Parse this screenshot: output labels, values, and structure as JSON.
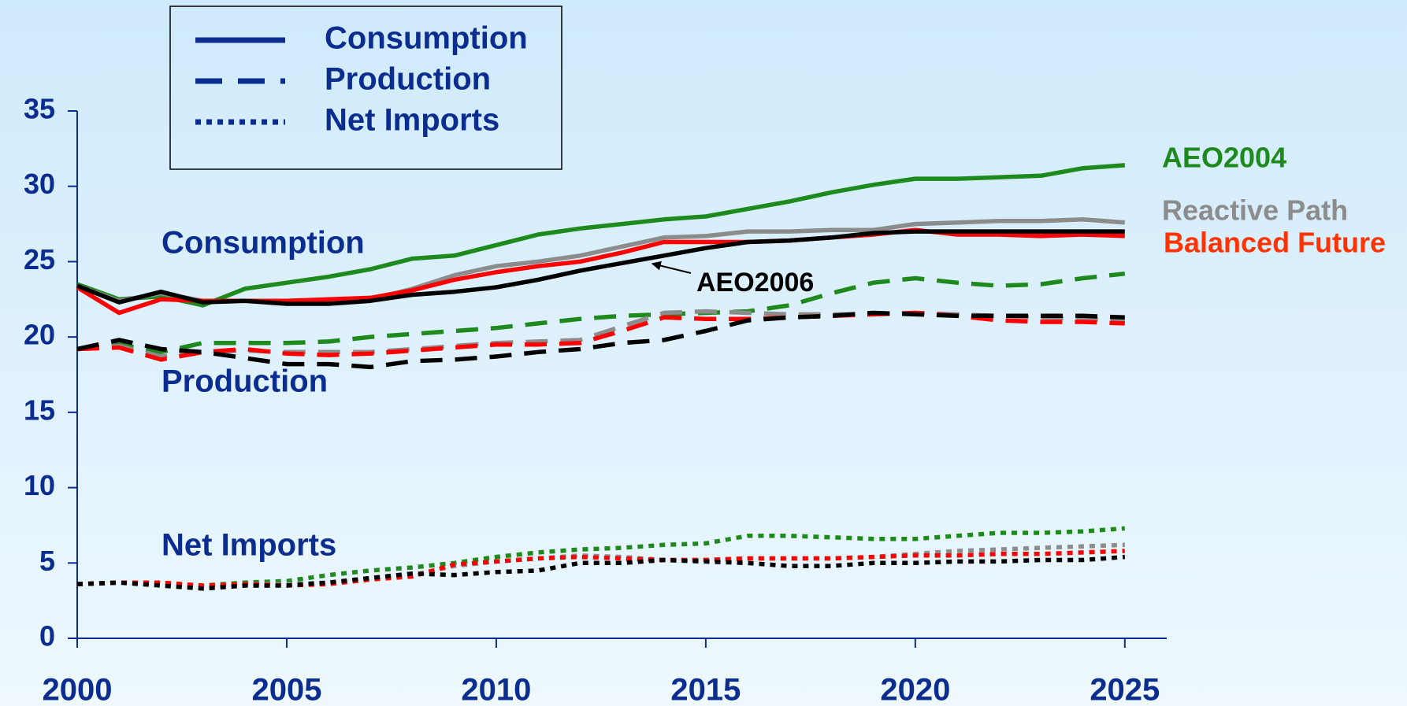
{
  "chart_data": {
    "type": "line",
    "x": [
      2000,
      2001,
      2002,
      2003,
      2004,
      2005,
      2006,
      2007,
      2008,
      2009,
      2010,
      2011,
      2012,
      2013,
      2014,
      2015,
      2016,
      2017,
      2018,
      2019,
      2020,
      2021,
      2022,
      2023,
      2024,
      2025
    ],
    "xlim": [
      2000,
      2026
    ],
    "xticks": [
      2000,
      2005,
      2010,
      2015,
      2020,
      2025
    ],
    "ylim": [
      0,
      35
    ],
    "yticks": [
      0,
      5,
      10,
      15,
      20,
      25,
      30,
      35
    ],
    "legend": [
      {
        "name": "Consumption",
        "dash": "solid"
      },
      {
        "name": "Production",
        "dash": "dashed"
      },
      {
        "name": "Net Imports",
        "dash": "dotted"
      }
    ],
    "legend_color": "#0b2d8f",
    "annotations": [
      {
        "text": "Consumption"
      },
      {
        "text": "Production"
      },
      {
        "text": "Net Imports"
      }
    ],
    "series": [
      {
        "name": "AEO2004",
        "color": "#1e8a1e",
        "label_color": "#1e8a1e",
        "values": [
          [
            23.5,
            22.5,
            22.7,
            22.1,
            23.2,
            23.6,
            24.0,
            24.5,
            25.2,
            25.4,
            26.1,
            26.8,
            27.2,
            27.5,
            27.8,
            28.0,
            28.5,
            29.0,
            29.6,
            30.1,
            30.5,
            30.5,
            30.6,
            30.7,
            31.2,
            31.4
          ],
          [
            19.2,
            19.5,
            19.0,
            19.6,
            19.6,
            19.6,
            19.7,
            20.0,
            20.2,
            20.4,
            20.6,
            20.9,
            21.2,
            21.4,
            21.5,
            21.6,
            21.7,
            22.1,
            22.9,
            23.6,
            23.9,
            23.6,
            23.4,
            23.5,
            23.9,
            24.2
          ],
          [
            3.6,
            3.7,
            3.6,
            3.5,
            3.7,
            3.8,
            4.2,
            4.5,
            4.7,
            5.0,
            5.4,
            5.7,
            5.9,
            6.0,
            6.2,
            6.3,
            6.8,
            6.8,
            6.7,
            6.6,
            6.6,
            6.8,
            7.0,
            7.0,
            7.1,
            7.3
          ]
        ]
      },
      {
        "name": "Reactive Path",
        "color": "#8c8c8c",
        "label_color": "#8c8c8c",
        "values": [
          [
            23.4,
            22.4,
            22.9,
            22.4,
            22.4,
            22.4,
            22.4,
            22.5,
            23.2,
            24.1,
            24.7,
            25.0,
            25.4,
            26.0,
            26.6,
            26.7,
            27.0,
            27.0,
            27.1,
            27.1,
            27.5,
            27.6,
            27.7,
            27.7,
            27.8,
            27.6
          ],
          [
            19.2,
            19.4,
            18.7,
            19.0,
            19.1,
            19.0,
            19.0,
            19.0,
            19.2,
            19.4,
            19.6,
            19.7,
            19.8,
            20.7,
            21.6,
            21.7,
            21.6,
            21.5,
            21.5,
            21.5,
            21.6,
            21.5,
            21.4,
            21.3,
            21.2,
            21.1
          ],
          [
            3.6,
            3.7,
            3.6,
            3.5,
            3.6,
            3.6,
            3.7,
            4.0,
            4.2,
            4.8,
            5.1,
            5.3,
            5.5,
            5.4,
            5.2,
            5.2,
            5.3,
            5.3,
            5.3,
            5.4,
            5.6,
            5.8,
            5.9,
            6.0,
            6.1,
            6.2
          ]
        ]
      },
      {
        "name": "Balanced Future",
        "color": "#ff0000",
        "label_color": "#ff3300",
        "values": [
          [
            23.3,
            21.6,
            22.5,
            22.4,
            22.4,
            22.4,
            22.5,
            22.6,
            23.1,
            23.8,
            24.3,
            24.7,
            25.0,
            25.6,
            26.3,
            26.3,
            26.3,
            26.4,
            26.6,
            26.8,
            27.1,
            26.8,
            26.8,
            26.7,
            26.8,
            26.7
          ],
          [
            19.2,
            19.3,
            18.5,
            19.0,
            19.2,
            18.9,
            18.8,
            18.9,
            19.1,
            19.3,
            19.5,
            19.5,
            19.6,
            20.4,
            21.3,
            21.2,
            21.2,
            21.3,
            21.4,
            21.5,
            21.6,
            21.4,
            21.1,
            21.0,
            21.0,
            20.9
          ],
          [
            3.6,
            3.7,
            3.7,
            3.5,
            3.6,
            3.5,
            3.6,
            3.9,
            4.1,
            4.9,
            5.1,
            5.3,
            5.4,
            5.3,
            5.2,
            5.2,
            5.3,
            5.3,
            5.3,
            5.4,
            5.5,
            5.5,
            5.6,
            5.6,
            5.7,
            5.8
          ]
        ]
      },
      {
        "name": "AEO2006",
        "color": "#000000",
        "label_color": "#000000",
        "values": [
          [
            23.4,
            22.3,
            23.0,
            22.3,
            22.4,
            22.2,
            22.2,
            22.4,
            22.8,
            23.0,
            23.3,
            23.8,
            24.4,
            24.9,
            25.4,
            25.9,
            26.3,
            26.4,
            26.6,
            26.9,
            27.0,
            27.0,
            27.0,
            27.0,
            27.0,
            27.0
          ],
          [
            19.2,
            19.8,
            19.2,
            19.0,
            18.6,
            18.2,
            18.2,
            18.0,
            18.4,
            18.5,
            18.7,
            19.0,
            19.2,
            19.6,
            19.8,
            20.4,
            21.1,
            21.3,
            21.4,
            21.6,
            21.5,
            21.4,
            21.4,
            21.4,
            21.4,
            21.3
          ],
          [
            3.6,
            3.7,
            3.5,
            3.3,
            3.5,
            3.5,
            3.7,
            4.0,
            4.3,
            4.2,
            4.4,
            4.5,
            5.0,
            5.0,
            5.2,
            5.1,
            5.0,
            4.8,
            4.8,
            5.0,
            5.0,
            5.1,
            5.1,
            5.2,
            5.2,
            5.4
          ]
        ]
      }
    ]
  }
}
